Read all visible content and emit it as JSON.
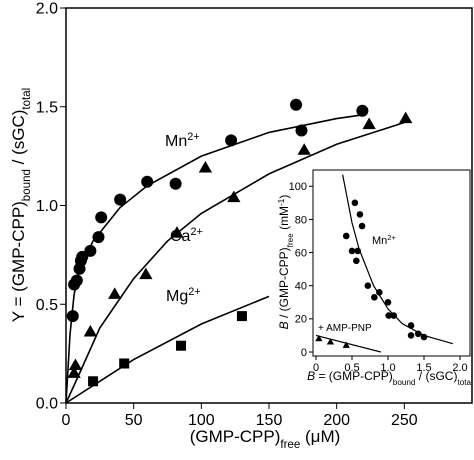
{
  "chart_data": [
    {
      "type": "scatter",
      "xlabel": [
        {
          "text": "(GMP-CPP)"
        },
        {
          "text": "free",
          "shift": "sub"
        },
        {
          "text": " (μM)"
        }
      ],
      "ylabel": [
        {
          "text": "Y = (GMP-CPP)"
        },
        {
          "text": "bound",
          "shift": "sub"
        },
        {
          "text": " / (sGC)"
        },
        {
          "text": "total",
          "shift": "sub"
        }
      ],
      "xlim": [
        0,
        300
      ],
      "ylim": [
        0,
        2
      ],
      "xticks": [
        0,
        50,
        100,
        150,
        200,
        250
      ],
      "yticks": [
        {
          "value": 0,
          "label": "0.0"
        },
        {
          "value": 0.5,
          "label": "0.5"
        },
        {
          "value": 1,
          "label": "1.0"
        },
        {
          "value": 1.5,
          "label": "1.5"
        },
        {
          "value": 2,
          "label": "2.0"
        }
      ],
      "annotations": [
        [
          {
            "text": "Mn"
          },
          {
            "text": "2+",
            "shift": "super"
          }
        ],
        [
          {
            "text": "Ca"
          },
          {
            "text": "2+",
            "shift": "super"
          }
        ],
        [
          {
            "text": "Mg"
          },
          {
            "text": "2+",
            "shift": "super"
          }
        ]
      ],
      "series": [
        {
          "marker": "circle",
          "color": "#000000",
          "x": [
            5,
            6,
            8,
            10,
            11,
            12,
            18,
            24,
            26,
            40,
            60,
            81,
            122,
            170,
            174,
            219
          ],
          "values": [
            0.44,
            0.6,
            0.62,
            0.68,
            0.72,
            0.74,
            0.77,
            0.84,
            0.94,
            1.03,
            1.12,
            1.11,
            1.33,
            1.51,
            1.38,
            1.48
          ]
        },
        {
          "marker": "triangle",
          "color": "#000000",
          "x": [
            6,
            7,
            18,
            36,
            59,
            82,
            103,
            124,
            176,
            224,
            251
          ],
          "values": [
            0.15,
            0.19,
            0.36,
            0.55,
            0.65,
            0.86,
            1.19,
            1.04,
            1.28,
            1.41,
            1.44
          ]
        },
        {
          "marker": "square",
          "color": "#000000",
          "x": [
            20,
            43,
            85,
            130
          ],
          "values": [
            0.11,
            0.2,
            0.29,
            0.44
          ]
        },
        {
          "marker": "line",
          "color": "#000000",
          "x": [
            0,
            3,
            6,
            10,
            20,
            40,
            60,
            100,
            150,
            200,
            220
          ],
          "values": [
            0,
            0.35,
            0.55,
            0.68,
            0.82,
            0.99,
            1.1,
            1.25,
            1.37,
            1.44,
            1.46
          ]
        },
        {
          "marker": "line",
          "color": "#000000",
          "x": [
            0,
            10,
            25,
            50,
            75,
            100,
            150,
            200,
            250
          ],
          "values": [
            0,
            0.15,
            0.38,
            0.63,
            0.82,
            0.96,
            1.16,
            1.31,
            1.42
          ]
        },
        {
          "marker": "line",
          "color": "#000000",
          "x": [
            0,
            50,
            100,
            150
          ],
          "values": [
            0,
            0.22,
            0.4,
            0.54
          ]
        }
      ]
    },
    {
      "type": "scatter",
      "xlabel": [
        {
          "text": "B",
          "italic": true
        },
        {
          "text": " = (GMP-CPP)"
        },
        {
          "text": "bound",
          "shift": "sub"
        },
        {
          "text": " / (sGC)"
        },
        {
          "text": "total",
          "shift": "sub"
        }
      ],
      "ylabel": [
        {
          "text": "B",
          "italic": true
        },
        {
          "text": " / (GMP-CPP)"
        },
        {
          "text": "free",
          "shift": "sub"
        },
        {
          "text": " (mM"
        },
        {
          "text": "-1",
          "shift": "super"
        },
        {
          "text": ")"
        }
      ],
      "xlim": [
        0,
        2
      ],
      "ylim": [
        0,
        108
      ],
      "xticks": [
        0,
        0.5,
        {
          "value": 1,
          "label": "1.0"
        },
        1.5,
        {
          "value": 2,
          "label": "2.0"
        }
      ],
      "yticks": [
        0,
        20,
        40,
        60,
        80,
        100
      ],
      "annotations": [
        [
          {
            "text": "Mn"
          },
          {
            "text": "2+",
            "shift": "super"
          }
        ],
        [
          {
            "text": "+ AMP-PNP"
          }
        ]
      ],
      "series": [
        {
          "marker": "circle",
          "color": "#000000",
          "x": [
            0.42,
            0.54,
            0.61,
            0.64,
            0.5,
            0.58,
            0.56,
            0.72,
            0.81,
            0.88,
            1.0,
            1.01,
            1.08,
            1.32,
            1.42,
            1.5,
            1.32
          ],
          "values": [
            70,
            90,
            83,
            76,
            61,
            61,
            55,
            40,
            33,
            36,
            30,
            22,
            22,
            16,
            11,
            9,
            10
          ]
        },
        {
          "marker": "triangle",
          "color": "#000000",
          "x": [
            0.04,
            0.2,
            0.42
          ],
          "values": [
            8,
            6,
            4
          ]
        },
        {
          "marker": "line",
          "color": "#000000",
          "x": [
            0.37,
            0.5,
            0.6,
            0.8,
            1.0,
            1.2,
            1.5,
            1.9
          ],
          "values": [
            107,
            78,
            62,
            40,
            26,
            17,
            10,
            5
          ]
        },
        {
          "marker": "line",
          "color": "#000000",
          "x": [
            0,
            0.9
          ],
          "values": [
            10,
            0
          ]
        }
      ]
    }
  ]
}
